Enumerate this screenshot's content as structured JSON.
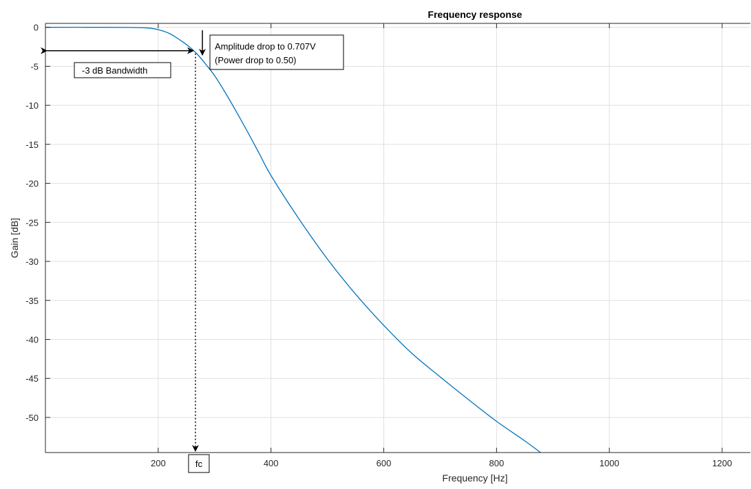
{
  "chart_data": {
    "type": "line",
    "title": "Frequency response",
    "xlabel": "Frequency [Hz]",
    "ylabel": "Gain [dB]",
    "xlim": [
      0,
      1250
    ],
    "ylim": [
      -54.5,
      0.5
    ],
    "xticks": [
      200,
      400,
      600,
      800,
      1000,
      1200
    ],
    "yticks": [
      0,
      -5,
      -10,
      -15,
      -20,
      -25,
      -30,
      -35,
      -40,
      -45,
      -50
    ],
    "grid": true,
    "series": [
      {
        "color": "#0072bd",
        "x": [
          0,
          100,
          150,
          180,
          200,
          220,
          240,
          255,
          270,
          285,
          300,
          320,
          340,
          360,
          380,
          400,
          450,
          500,
          550,
          600,
          650,
          700,
          750,
          800,
          850,
          878
        ],
        "y": [
          0,
          0,
          -0.02,
          -0.08,
          -0.3,
          -0.8,
          -1.7,
          -2.5,
          -3.5,
          -4.8,
          -6.2,
          -8.5,
          -11,
          -13.6,
          -16.3,
          -19,
          -24.6,
          -29.7,
          -34.2,
          -38.2,
          -41.8,
          -44.8,
          -47.7,
          -50.5,
          -53,
          -54.5
        ]
      }
    ],
    "annotations": {
      "amplitude_line1": "Amplitude drop to 0.707V",
      "amplitude_line2": "(Power drop to 0.50)",
      "bandwidth_label": "-3 dB Bandwidth",
      "fc_label": "fc",
      "fc_frequency": 266,
      "bandwidth_level": -3
    }
  }
}
